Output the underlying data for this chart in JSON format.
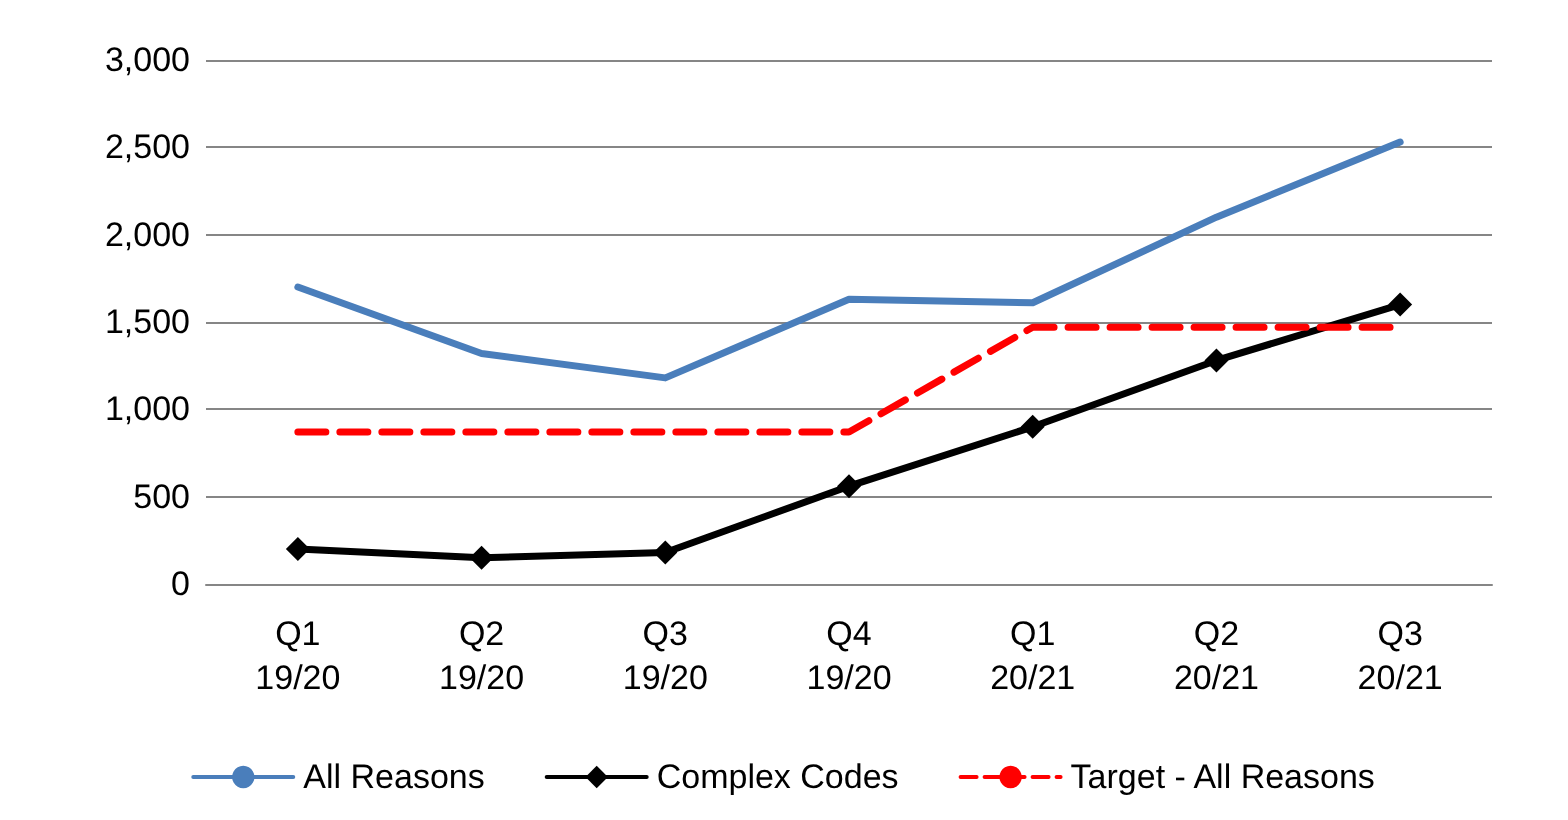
{
  "chart_data": {
    "type": "line",
    "categories": [
      "Q1\n19/20",
      "Q2\n19/20",
      "Q3\n19/20",
      "Q4\n19/20",
      "Q1\n20/21",
      "Q2\n20/21",
      "Q3\n20/21"
    ],
    "series": [
      {
        "name": "All Reasons",
        "color": "#4a7ebb",
        "marker": "none",
        "line_style": "solid",
        "values": [
          1700,
          1320,
          1180,
          1630,
          1610,
          2100,
          2530
        ]
      },
      {
        "name": "Complex Codes",
        "color": "#000000",
        "marker": "diamond",
        "line_style": "solid",
        "values": [
          200,
          150,
          180,
          560,
          900,
          1280,
          1600
        ]
      },
      {
        "name": "Target - All Reasons",
        "color": "#ff0000",
        "marker": "none",
        "line_style": "dashed",
        "values": [
          870,
          870,
          870,
          870,
          1470,
          1470,
          1470
        ]
      }
    ],
    "ylim": [
      0,
      3000
    ],
    "yticks": [
      0,
      500,
      {
        "value": 1000,
        "label": "1,000"
      },
      {
        "value": 1500,
        "label": "1,500"
      },
      {
        "value": 2000,
        "label": "2,000"
      },
      {
        "value": 2500,
        "label": "2,500"
      },
      {
        "value": 3000,
        "label": "3,000"
      }
    ],
    "grid": "y",
    "legend": "bottom"
  }
}
